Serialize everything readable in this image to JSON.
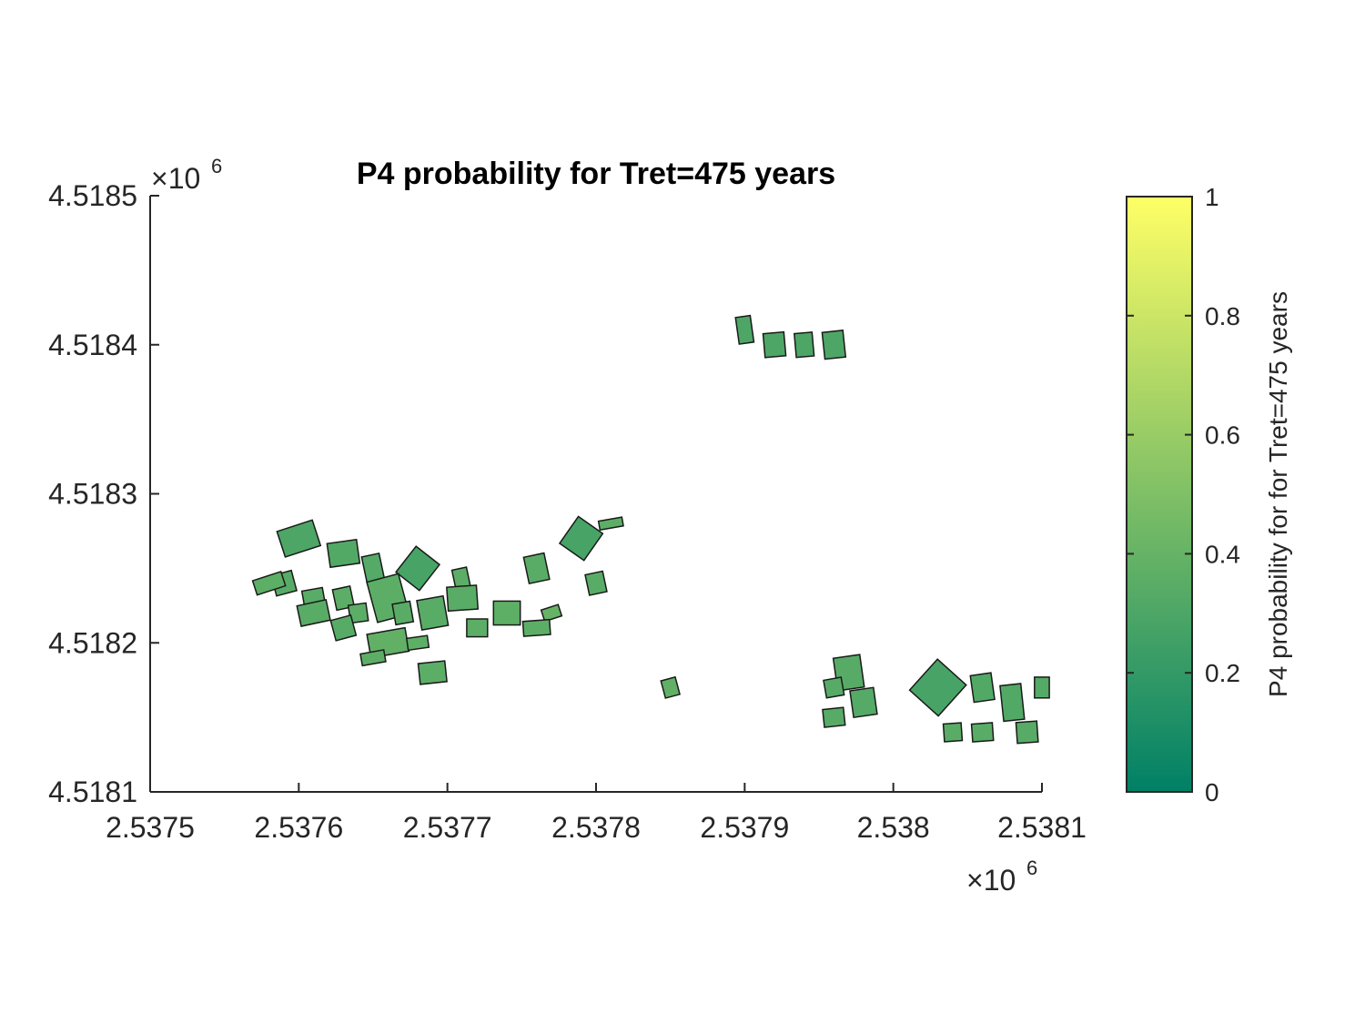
{
  "chart_data": {
    "type": "map",
    "title": "P4 probability for Tret=475 years",
    "xlim": [
      2.5375,
      2.5381
    ],
    "ylim": [
      4.5181,
      4.5185
    ],
    "x_ticks": [
      "2.5375",
      "2.5376",
      "2.5377",
      "2.5378",
      "2.5379",
      "2.538",
      "2.5381"
    ],
    "y_ticks": [
      "4.5181",
      "4.5182",
      "4.5183",
      "4.5184",
      "4.5185"
    ],
    "x_multiplier": {
      "base": "×10",
      "exp": "6"
    },
    "y_multiplier": {
      "base": "×10",
      "exp": "6"
    },
    "colorbar": {
      "label": "P4 probability for for Tret=475 years",
      "range": [
        0,
        1
      ],
      "ticks": [
        "0",
        "0.2",
        "0.4",
        "0.6",
        "0.8",
        "1"
      ],
      "colormap": "summer",
      "color_low": "#008066",
      "color_high": "#ffff66"
    },
    "buildings": [
      {
        "cluster": "west",
        "x": 2.5376,
        "y": 4.51827,
        "w": 2.5e-05,
        "h": 1.8e-05,
        "angle": -18,
        "p4": 0.3
      },
      {
        "cluster": "west",
        "x": 2.53763,
        "y": 4.51826,
        "w": 2e-05,
        "h": 1.6e-05,
        "angle": -8,
        "p4": 0.32
      },
      {
        "cluster": "west",
        "x": 2.53765,
        "y": 4.51825,
        "w": 1.2e-05,
        "h": 1.8e-05,
        "angle": -12,
        "p4": 0.33
      },
      {
        "cluster": "west",
        "x": 2.53768,
        "y": 4.51825,
        "w": 2e-05,
        "h": 2.2e-05,
        "angle": 38,
        "p4": 0.28
      },
      {
        "cluster": "west",
        "x": 2.53771,
        "y": 4.51824,
        "w": 1e-05,
        "h": 2e-05,
        "angle": -12,
        "p4": 0.36
      },
      {
        "cluster": "west",
        "x": 2.53759,
        "y": 4.51824,
        "w": 1.4e-05,
        "h": 1.4e-05,
        "angle": -15,
        "p4": 0.34
      },
      {
        "cluster": "west",
        "x": 2.53761,
        "y": 4.51823,
        "w": 1.4e-05,
        "h": 1.2e-05,
        "angle": -10,
        "p4": 0.35
      },
      {
        "cluster": "west",
        "x": 2.53763,
        "y": 4.51823,
        "w": 1.2e-05,
        "h": 1.4e-05,
        "angle": -12,
        "p4": 0.36
      },
      {
        "cluster": "west",
        "x": 2.53758,
        "y": 4.51824,
        "w": 2e-05,
        "h": 1e-05,
        "angle": -18,
        "p4": 0.37
      },
      {
        "cluster": "west",
        "x": 2.53766,
        "y": 4.51823,
        "w": 2.2e-05,
        "h": 2.8e-05,
        "angle": -15,
        "p4": 0.36
      },
      {
        "cluster": "west",
        "x": 2.53761,
        "y": 4.51822,
        "w": 2e-05,
        "h": 1.4e-05,
        "angle": -12,
        "p4": 0.35
      },
      {
        "cluster": "west",
        "x": 2.53764,
        "y": 4.51822,
        "w": 1.2e-05,
        "h": 1.2e-05,
        "angle": -8,
        "p4": 0.36
      },
      {
        "cluster": "west",
        "x": 2.53769,
        "y": 4.51822,
        "w": 1.8e-05,
        "h": 2e-05,
        "angle": -10,
        "p4": 0.35
      },
      {
        "cluster": "west",
        "x": 2.53767,
        "y": 4.51822,
        "w": 1.2e-05,
        "h": 1.4e-05,
        "angle": -10,
        "p4": 0.35
      },
      {
        "cluster": "west",
        "x": 2.53771,
        "y": 4.51823,
        "w": 2e-05,
        "h": 1.6e-05,
        "angle": -4,
        "p4": 0.35
      },
      {
        "cluster": "west",
        "x": 2.53774,
        "y": 4.51822,
        "w": 1.8e-05,
        "h": 1.6e-05,
        "angle": 0,
        "p4": 0.37
      },
      {
        "cluster": "west",
        "x": 2.53777,
        "y": 4.51822,
        "w": 1.2e-05,
        "h": 8e-06,
        "angle": -18,
        "p4": 0.4
      },
      {
        "cluster": "west",
        "x": 2.53772,
        "y": 4.51821,
        "w": 1.4e-05,
        "h": 1.2e-05,
        "angle": 0,
        "p4": 0.36
      },
      {
        "cluster": "west",
        "x": 2.53776,
        "y": 4.51821,
        "w": 1.8e-05,
        "h": 1e-05,
        "angle": -4,
        "p4": 0.36
      },
      {
        "cluster": "west",
        "x": 2.53763,
        "y": 4.51821,
        "w": 1.4e-05,
        "h": 1.4e-05,
        "angle": -15,
        "p4": 0.34
      },
      {
        "cluster": "west",
        "x": 2.53766,
        "y": 4.5182,
        "w": 2.6e-05,
        "h": 1.6e-05,
        "angle": -10,
        "p4": 0.38
      },
      {
        "cluster": "west",
        "x": 2.53768,
        "y": 4.5182,
        "w": 1.4e-05,
        "h": 8e-06,
        "angle": -8,
        "p4": 0.37
      },
      {
        "cluster": "west",
        "x": 2.53765,
        "y": 4.51819,
        "w": 1.6e-05,
        "h": 8e-06,
        "angle": -10,
        "p4": 0.36
      },
      {
        "cluster": "west",
        "x": 2.53769,
        "y": 4.51818,
        "w": 1.8e-05,
        "h": 1.4e-05,
        "angle": -6,
        "p4": 0.36
      },
      {
        "cluster": "center",
        "x": 2.53779,
        "y": 4.51827,
        "w": 2e-05,
        "h": 2.2e-05,
        "angle": 35,
        "p4": 0.28
      },
      {
        "cluster": "center",
        "x": 2.53776,
        "y": 4.51825,
        "w": 1.4e-05,
        "h": 1.8e-05,
        "angle": -12,
        "p4": 0.35
      },
      {
        "cluster": "center",
        "x": 2.5378,
        "y": 4.51824,
        "w": 1.2e-05,
        "h": 1.4e-05,
        "angle": -12,
        "p4": 0.35
      },
      {
        "cluster": "center",
        "x": 2.53781,
        "y": 4.51828,
        "w": 1.6e-05,
        "h": 6e-06,
        "angle": -10,
        "p4": 0.37
      },
      {
        "cluster": "center",
        "x": 2.53785,
        "y": 4.51817,
        "w": 1e-05,
        "h": 1.2e-05,
        "angle": -15,
        "p4": 0.38
      },
      {
        "cluster": "north",
        "x": 2.5379,
        "y": 4.51841,
        "w": 1e-05,
        "h": 1.8e-05,
        "angle": -8,
        "p4": 0.3
      },
      {
        "cluster": "north",
        "x": 2.53792,
        "y": 4.5184,
        "w": 1.4e-05,
        "h": 1.6e-05,
        "angle": -5,
        "p4": 0.3
      },
      {
        "cluster": "north",
        "x": 2.53794,
        "y": 4.5184,
        "w": 1.2e-05,
        "h": 1.6e-05,
        "angle": -5,
        "p4": 0.3
      },
      {
        "cluster": "north",
        "x": 2.53796,
        "y": 4.5184,
        "w": 1.4e-05,
        "h": 1.8e-05,
        "angle": -6,
        "p4": 0.3
      },
      {
        "cluster": "east",
        "x": 2.53797,
        "y": 4.51818,
        "w": 1.8e-05,
        "h": 2.2e-05,
        "angle": -8,
        "p4": 0.34
      },
      {
        "cluster": "east",
        "x": 2.53796,
        "y": 4.51817,
        "w": 1.2e-05,
        "h": 1.2e-05,
        "angle": -10,
        "p4": 0.34
      },
      {
        "cluster": "east",
        "x": 2.53798,
        "y": 4.51816,
        "w": 1.6e-05,
        "h": 1.8e-05,
        "angle": -8,
        "p4": 0.33
      },
      {
        "cluster": "east",
        "x": 2.53796,
        "y": 4.51815,
        "w": 1.4e-05,
        "h": 1.2e-05,
        "angle": -6,
        "p4": 0.34
      },
      {
        "cluster": "east",
        "x": 2.53803,
        "y": 4.51817,
        "w": 2.6e-05,
        "h": 2.8e-05,
        "angle": 42,
        "p4": 0.28
      },
      {
        "cluster": "east",
        "x": 2.53806,
        "y": 4.51817,
        "w": 1.4e-05,
        "h": 1.8e-05,
        "angle": -8,
        "p4": 0.32
      },
      {
        "cluster": "east",
        "x": 2.53808,
        "y": 4.51816,
        "w": 1.4e-05,
        "h": 2.4e-05,
        "angle": -6,
        "p4": 0.32
      },
      {
        "cluster": "east",
        "x": 2.5381,
        "y": 4.51817,
        "w": 1e-05,
        "h": 1.4e-05,
        "angle": 0,
        "p4": 0.33
      },
      {
        "cluster": "east",
        "x": 2.53809,
        "y": 4.51814,
        "w": 1.4e-05,
        "h": 1.4e-05,
        "angle": -4,
        "p4": 0.34
      },
      {
        "cluster": "east",
        "x": 2.53804,
        "y": 4.51814,
        "w": 1.2e-05,
        "h": 1.2e-05,
        "angle": -4,
        "p4": 0.35
      },
      {
        "cluster": "east",
        "x": 2.53806,
        "y": 4.51814,
        "w": 1.4e-05,
        "h": 1.2e-05,
        "angle": -4,
        "p4": 0.35
      }
    ]
  }
}
